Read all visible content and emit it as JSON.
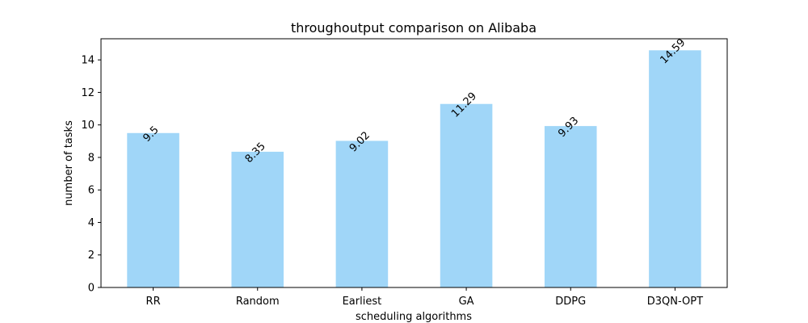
{
  "chart_data": {
    "type": "bar",
    "title": "throughoutput comparison on Alibaba",
    "xlabel": "scheduling algorithms",
    "ylabel": "number of tasks",
    "categories": [
      "RR",
      "Random",
      "Earliest",
      "GA",
      "DDPG",
      "D3QN-OPT"
    ],
    "values": [
      9.5,
      8.35,
      9.02,
      11.29,
      9.93,
      14.59
    ],
    "data_labels": [
      "9.5",
      "8.35",
      "9.02",
      "11.29",
      "9.93",
      "14.59"
    ],
    "yticks": [
      0,
      2,
      4,
      6,
      8,
      10,
      12,
      14
    ],
    "ylim": [
      0,
      15.3
    ],
    "bar_color": "#a0d6f8",
    "grid": false,
    "legend": "none"
  }
}
